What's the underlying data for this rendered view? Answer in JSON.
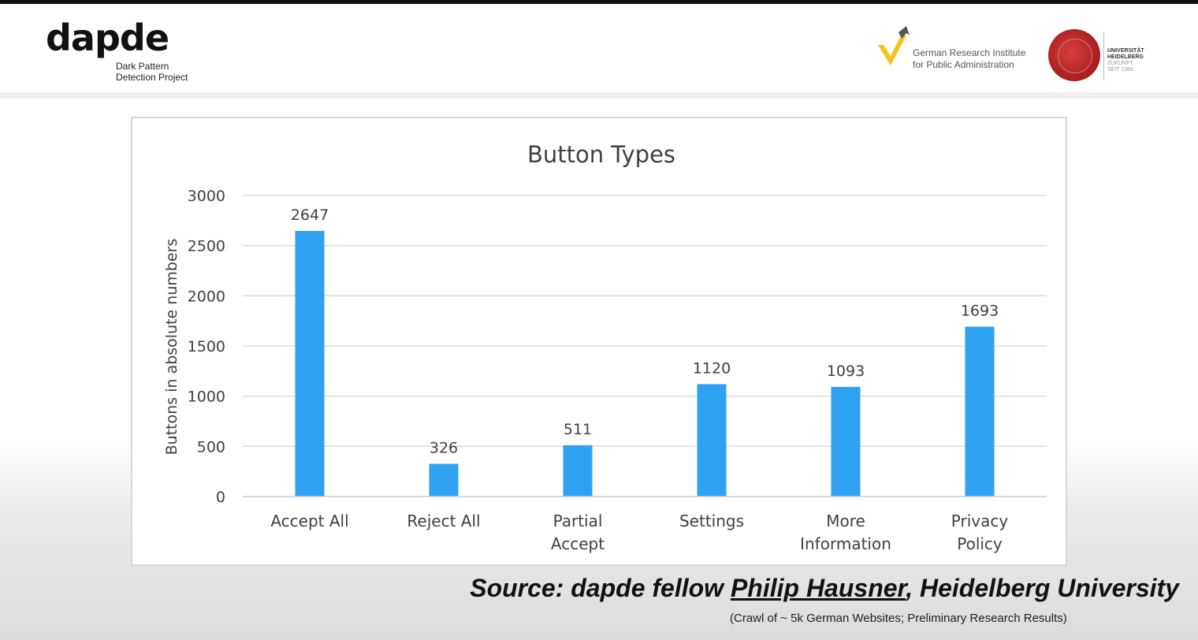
{
  "header": {
    "brand": "dapde",
    "brand_subtitle_line1": "Dark Pattern",
    "brand_subtitle_line2": "Detection Project",
    "institute_line1": "German Research Institute",
    "institute_line2": "for Public Administration",
    "university_line1": "UNIVERSITÄT",
    "university_line2": "HEIDELBERG",
    "university_line3": "ZUKUNFT",
    "university_line4": "SEIT 1386"
  },
  "colors": {
    "bar": "#2ea1f2",
    "institute_logo_yellow": "#f6c21a",
    "seal_red": "#c02a2a"
  },
  "chart_data": {
    "type": "bar",
    "title": "Button Types",
    "xlabel": "",
    "ylabel": "Buttons in absolute numbers",
    "ylim": [
      0,
      3000
    ],
    "yticks": [
      0,
      500,
      1000,
      1500,
      2000,
      2500,
      3000
    ],
    "grid": true,
    "legend": "none",
    "categories": [
      [
        "Accept All"
      ],
      [
        "Reject All"
      ],
      [
        "Partial",
        "Accept"
      ],
      [
        "Settings"
      ],
      [
        "More",
        "Information"
      ],
      [
        "Privacy",
        "Policy"
      ]
    ],
    "values": [
      2647,
      326,
      511,
      1120,
      1093,
      1693
    ]
  },
  "footer": {
    "source_prefix": "Source: dapde fellow ",
    "source_name": "Philip Hausner",
    "source_suffix": ", Heidelberg University",
    "note": "(Crawl of ~ 5k German Websites; Preliminary Research Results)"
  }
}
